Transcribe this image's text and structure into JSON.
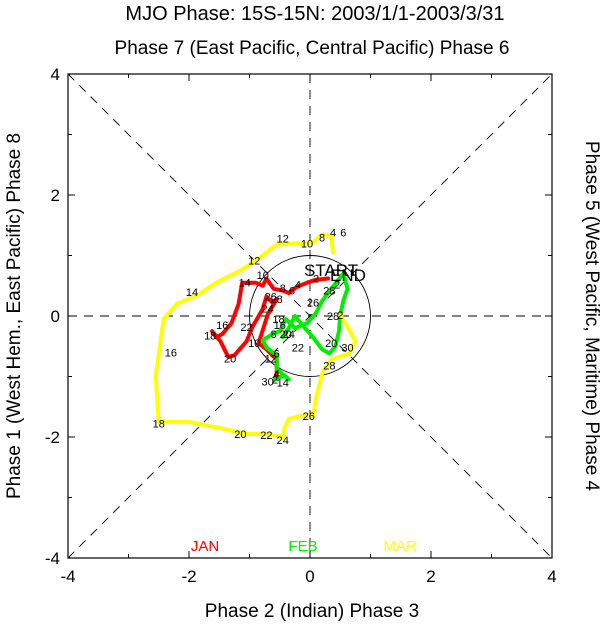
{
  "chart_data": {
    "type": "line",
    "title": "MJO Phase: 15S-15N: 2003/1/1-2003/3/31",
    "top_label": "Phase 7 (East Pacific, Central Pacific) Phase 6",
    "xlabel": "Phase 2 (Indian) Phase 3",
    "ylabel_left": "Phase 1 (West Hem., East Pacific) Phase 8",
    "ylabel_right": "Phase 5 (West Pacific, Maritime) Phase 4",
    "xlim": [
      -4,
      4
    ],
    "ylim": [
      -4,
      4
    ],
    "xticks": [
      "-4",
      "-2",
      "0",
      "2",
      "4"
    ],
    "yticks": [
      "-4",
      "-2",
      "0",
      "2",
      "4"
    ],
    "unit_circle_radius": 1,
    "start_label": "START",
    "end_label": "END",
    "series": [
      {
        "name": "JAN",
        "color": "#ff0000",
        "points": [
          [
            0.3,
            0.62
          ],
          [
            0.1,
            0.6
          ],
          [
            -0.05,
            0.55
          ],
          [
            -0.22,
            0.48
          ],
          [
            -0.35,
            0.38
          ],
          [
            -0.45,
            0.42
          ],
          [
            -0.6,
            0.45
          ],
          [
            -0.72,
            0.62
          ],
          [
            -0.78,
            0.5
          ],
          [
            -0.9,
            0.55
          ],
          [
            -1.12,
            0.55
          ],
          [
            -1.18,
            0.2
          ],
          [
            -1.3,
            -0.12
          ],
          [
            -1.45,
            -0.3
          ],
          [
            -1.55,
            -0.35
          ],
          [
            -1.62,
            -0.25
          ],
          [
            -1.48,
            -0.42
          ],
          [
            -1.35,
            -0.68
          ],
          [
            -1.25,
            -0.65
          ],
          [
            -1.05,
            -0.42
          ],
          [
            -0.95,
            -0.18
          ],
          [
            -0.78,
            0.12
          ],
          [
            -0.72,
            0.32
          ],
          [
            -0.62,
            0.22
          ],
          [
            -0.55,
            0.28
          ],
          [
            -0.7,
            0.02
          ],
          [
            -0.85,
            -0.45
          ],
          [
            -0.72,
            -0.55
          ],
          [
            -0.55,
            -0.72
          ],
          [
            -0.55,
            -0.95
          ],
          [
            -0.58,
            -1.05
          ]
        ],
        "labels": [
          {
            "text": "2",
            "at": [
              0.1,
              0.62
            ]
          },
          {
            "text": "4",
            "at": [
              -0.2,
              0.52
            ]
          },
          {
            "text": "6",
            "at": [
              -0.3,
              0.42
            ]
          },
          {
            "text": "8",
            "at": [
              -0.45,
              0.46
            ]
          },
          {
            "text": "10",
            "at": [
              -0.78,
              0.68
            ]
          },
          {
            "text": "12",
            "at": [
              -0.92,
              0.92
            ]
          },
          {
            "text": "14",
            "at": [
              -1.08,
              0.55
            ]
          },
          {
            "text": "16",
            "at": [
              -1.45,
              -0.15
            ]
          },
          {
            "text": "18",
            "at": [
              -1.65,
              -0.32
            ]
          },
          {
            "text": "20",
            "at": [
              -1.32,
              -0.7
            ]
          },
          {
            "text": "22",
            "at": [
              -1.05,
              -0.18
            ]
          },
          {
            "text": "24",
            "at": [
              -0.7,
              0.12
            ]
          },
          {
            "text": "26",
            "at": [
              -0.65,
              0.32
            ]
          },
          {
            "text": "28",
            "at": [
              -0.55,
              0.28
            ]
          },
          {
            "text": "30",
            "at": [
              -0.7,
              -1.08
            ]
          }
        ]
      },
      {
        "name": "FEB",
        "color": "#00ee00",
        "points": [
          [
            -0.58,
            -1.05
          ],
          [
            -0.42,
            -0.98
          ],
          [
            -0.35,
            -1.05
          ],
          [
            -0.55,
            -0.88
          ],
          [
            -0.55,
            -0.65
          ],
          [
            -0.72,
            -0.52
          ],
          [
            -0.78,
            -0.4
          ],
          [
            -0.62,
            -0.3
          ],
          [
            -0.5,
            -0.25
          ],
          [
            -0.45,
            -0.15
          ],
          [
            -0.4,
            -0.05
          ],
          [
            -0.25,
            -0.2
          ],
          [
            -0.05,
            -0.12
          ],
          [
            0.1,
            0.05
          ],
          [
            0.2,
            0.25
          ],
          [
            0.35,
            0.45
          ],
          [
            0.55,
            0.7
          ],
          [
            0.62,
            0.45
          ],
          [
            0.55,
            0.25
          ],
          [
            0.5,
            0.02
          ],
          [
            0.48,
            -0.25
          ],
          [
            0.42,
            -0.5
          ],
          [
            0.32,
            -0.62
          ],
          [
            0.2,
            -0.55
          ],
          [
            0.05,
            -0.35
          ],
          [
            -0.1,
            -0.18
          ],
          [
            -0.25,
            0.0
          ],
          [
            -0.35,
            -0.2
          ],
          [
            -0.45,
            -0.35
          ]
        ],
        "labels": [
          {
            "text": "2",
            "at": [
              -0.58,
              -1.05
            ]
          },
          {
            "text": "4",
            "at": [
              -0.55,
              -0.95
            ]
          },
          {
            "text": "6",
            "at": [
              -0.55,
              -0.62
            ]
          },
          {
            "text": "8",
            "at": [
              -0.6,
              -0.3
            ]
          },
          {
            "text": "10",
            "at": [
              -0.92,
              -0.45
            ]
          },
          {
            "text": "12",
            "at": [
              -0.65,
              -0.7
            ]
          },
          {
            "text": "14",
            "at": [
              -0.45,
              -1.1
            ]
          },
          {
            "text": "16",
            "at": [
              -0.5,
              -0.15
            ]
          },
          {
            "text": "18",
            "at": [
              -0.52,
              -0.05
            ]
          },
          {
            "text": "20",
            "at": [
              -0.4,
              -0.3
            ]
          },
          {
            "text": "22",
            "at": [
              -0.2,
              -0.52
            ]
          },
          {
            "text": "24",
            "at": [
              -0.35,
              -0.3
            ]
          },
          {
            "text": "26",
            "at": [
              0.05,
              0.22
            ]
          },
          {
            "text": "28",
            "at": [
              0.32,
              0.42
            ]
          },
          {
            "text": "2",
            "at": [
              0.45,
              0.52
            ]
          }
        ]
      },
      {
        "name": "MAR",
        "color": "#ffff00",
        "points": [
          [
            0.5,
            0.02
          ],
          [
            0.62,
            -0.18
          ],
          [
            0.75,
            -0.42
          ],
          [
            0.65,
            -0.62
          ],
          [
            0.35,
            -0.72
          ],
          [
            0.2,
            -0.95
          ],
          [
            0.1,
            -1.35
          ],
          [
            0.05,
            -1.65
          ],
          [
            -0.15,
            -1.65
          ],
          [
            -0.35,
            -1.7
          ],
          [
            -0.42,
            -1.85
          ],
          [
            -0.45,
            -2.0
          ],
          [
            -0.7,
            -1.95
          ],
          [
            -1.05,
            -1.95
          ],
          [
            -1.5,
            -1.85
          ],
          [
            -1.75,
            -1.8
          ],
          [
            -2.0,
            -1.75
          ],
          [
            -2.5,
            -1.75
          ],
          [
            -2.55,
            -1.0
          ],
          [
            -2.42,
            -0.05
          ],
          [
            -2.2,
            0.2
          ],
          [
            -1.85,
            0.35
          ],
          [
            -1.55,
            0.55
          ],
          [
            -1.15,
            0.75
          ],
          [
            -0.85,
            0.95
          ],
          [
            -0.55,
            1.18
          ],
          [
            -0.22,
            1.2
          ],
          [
            0.05,
            1.22
          ],
          [
            0.2,
            1.35
          ],
          [
            0.35,
            1.32
          ],
          [
            0.38,
            1.05
          ]
        ],
        "labels": [
          {
            "text": "2",
            "at": [
              0.5,
              0.02
            ]
          },
          {
            "text": "28",
            "at": [
              0.38,
              0.0
            ]
          },
          {
            "text": "30",
            "at": [
              0.62,
              -0.52
            ]
          },
          {
            "text": "20",
            "at": [
              0.35,
              -0.45
            ]
          },
          {
            "text": "28",
            "at": [
              0.32,
              -0.82
            ]
          },
          {
            "text": "26",
            "at": [
              -0.02,
              -1.65
            ]
          },
          {
            "text": "24",
            "at": [
              -0.45,
              -2.05
            ]
          },
          {
            "text": "22",
            "at": [
              -0.72,
              -1.97
            ]
          },
          {
            "text": "20",
            "at": [
              -1.15,
              -1.95
            ]
          },
          {
            "text": "18",
            "at": [
              -2.5,
              -1.78
            ]
          },
          {
            "text": "16",
            "at": [
              -2.3,
              -0.6
            ]
          },
          {
            "text": "14",
            "at": [
              -1.95,
              0.4
            ]
          },
          {
            "text": "12",
            "at": [
              -0.45,
              1.28
            ]
          },
          {
            "text": "10",
            "at": [
              -0.05,
              1.2
            ]
          },
          {
            "text": "8",
            "at": [
              0.2,
              1.3
            ]
          },
          {
            "text": "4",
            "at": [
              0.38,
              1.38
            ]
          },
          {
            "text": "6",
            "at": [
              0.55,
              1.38
            ]
          }
        ]
      }
    ],
    "legend": [
      "JAN",
      "FEB",
      "MAR"
    ],
    "legend_position": "bottom-inside"
  }
}
